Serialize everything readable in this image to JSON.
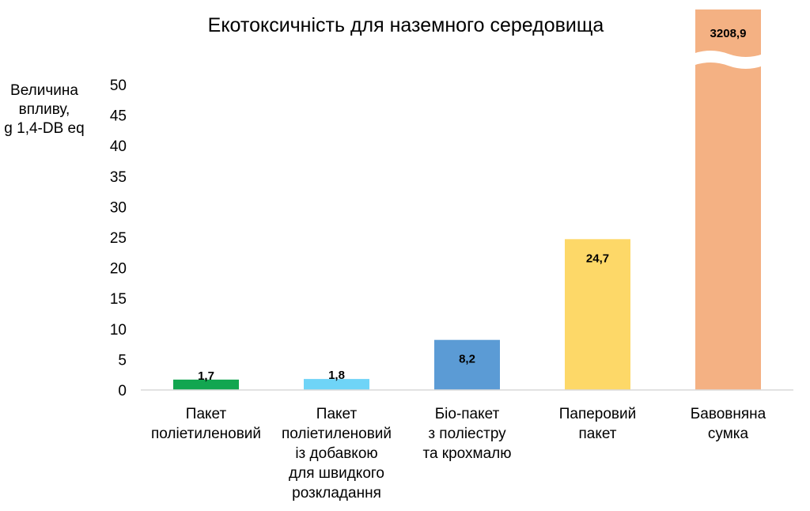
{
  "chart_data": {
    "type": "bar",
    "title": "Екотоксичність для наземного середовища",
    "ylabel_lines": [
      "Величина",
      "впливу,",
      "g 1,4-DB eq"
    ],
    "ylim": [
      0,
      50
    ],
    "yticks": [
      0,
      5,
      10,
      15,
      20,
      25,
      30,
      35,
      40,
      45,
      50
    ],
    "axis_break": true,
    "grid": false,
    "categories": [
      [
        "Пакет",
        "поліетиленовий"
      ],
      [
        "Пакет",
        "поліетиленовий",
        "із добавкою",
        "для швидкого",
        "розкладання"
      ],
      [
        "Біо-пакет",
        "з поліестру",
        "та крохмалю"
      ],
      [
        "Паперовий",
        "пакет"
      ],
      [
        "Бавовняна",
        "сумка"
      ]
    ],
    "values": [
      1.7,
      1.8,
      8.2,
      24.7,
      3208.9
    ],
    "value_labels": [
      "1,7",
      "1,8",
      "8,2",
      "24,7",
      "3208,9"
    ],
    "colors": [
      "#12a650",
      "#6fd4f7",
      "#5b9bd5",
      "#fdd868",
      "#f4b183"
    ]
  }
}
